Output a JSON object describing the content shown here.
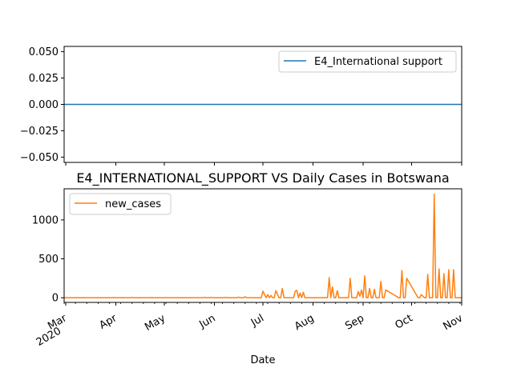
{
  "chart_data": [
    {
      "type": "line",
      "title": "",
      "xlabel": "",
      "ylabel": "",
      "ylim": [
        -0.055,
        0.055
      ],
      "yticks": [
        -0.05,
        -0.025,
        0.0,
        0.025,
        0.05
      ],
      "ytick_labels": [
        "−0.050",
        "−0.025",
        "0.000",
        "0.025",
        "0.050"
      ],
      "legend_position": "top-right",
      "grid": false,
      "series": [
        {
          "name": "E4_International support",
          "color": "#1f77b4",
          "x": [
            "2020-02-29",
            "2020-11-01"
          ],
          "values": [
            0,
            0
          ]
        }
      ]
    },
    {
      "type": "line",
      "title": "E4_INTERNATIONAL_SUPPORT VS Daily Cases in Botswana",
      "xlabel": "Date",
      "ylabel": "",
      "xlim": [
        "2020-02-29",
        "2020-11-01"
      ],
      "ylim": [
        -60,
        1400
      ],
      "yticks": [
        0,
        500,
        1000
      ],
      "ytick_labels": [
        "0",
        "500",
        "1000"
      ],
      "xtick_labels": [
        {
          "date": "2020-03-01",
          "label": "Mar",
          "sublabel": "2020"
        },
        {
          "date": "2020-04-01",
          "label": "Apr"
        },
        {
          "date": "2020-05-01",
          "label": "May"
        },
        {
          "date": "2020-06-01",
          "label": "Jun"
        },
        {
          "date": "2020-07-01",
          "label": "Jul"
        },
        {
          "date": "2020-08-01",
          "label": "Aug"
        },
        {
          "date": "2020-09-01",
          "label": "Sep"
        },
        {
          "date": "2020-10-01",
          "label": "Oct"
        },
        {
          "date": "2020-11-01",
          "label": "Nov"
        }
      ],
      "legend_position": "top-left",
      "grid": false,
      "series": [
        {
          "name": "new_cases",
          "color": "#ff7f0e",
          "x": [
            "2020-02-29",
            "2020-03-30",
            "2020-03-31",
            "2020-04-01",
            "2020-04-04",
            "2020-04-05",
            "2020-04-06",
            "2020-04-10",
            "2020-04-11",
            "2020-04-12",
            "2020-04-22",
            "2020-04-23",
            "2020-04-24",
            "2020-05-25",
            "2020-05-26",
            "2020-05-27",
            "2020-05-29",
            "2020-05-30",
            "2020-05-31",
            "2020-06-07",
            "2020-06-08",
            "2020-06-09",
            "2020-06-15",
            "2020-06-16",
            "2020-06-17",
            "2020-06-19",
            "2020-06-20",
            "2020-06-21",
            "2020-06-30",
            "2020-07-01",
            "2020-07-02",
            "2020-07-03",
            "2020-07-04",
            "2020-07-05",
            "2020-07-06",
            "2020-07-07",
            "2020-07-08",
            "2020-07-09",
            "2020-07-11",
            "2020-07-12",
            "2020-07-13",
            "2020-07-14",
            "2020-07-15",
            "2020-07-16",
            "2020-07-17",
            "2020-07-20",
            "2020-07-21",
            "2020-07-22",
            "2020-07-23",
            "2020-07-24",
            "2020-07-25",
            "2020-07-26",
            "2020-07-27",
            "2020-07-28",
            "2020-08-10",
            "2020-08-11",
            "2020-08-12",
            "2020-08-13",
            "2020-08-14",
            "2020-08-15",
            "2020-08-16",
            "2020-08-17",
            "2020-08-18",
            "2020-08-23",
            "2020-08-24",
            "2020-08-25",
            "2020-08-28",
            "2020-08-29",
            "2020-08-30",
            "2020-08-31",
            "2020-09-01",
            "2020-09-02",
            "2020-09-03",
            "2020-09-04",
            "2020-09-05",
            "2020-09-06",
            "2020-09-07",
            "2020-09-08",
            "2020-09-09",
            "2020-09-10",
            "2020-09-11",
            "2020-09-12",
            "2020-09-13",
            "2020-09-14",
            "2020-09-15",
            "2020-09-23",
            "2020-09-24",
            "2020-09-25",
            "2020-09-26",
            "2020-09-27",
            "2020-09-28",
            "2020-10-05",
            "2020-10-06",
            "2020-10-07",
            "2020-10-09",
            "2020-10-10",
            "2020-10-11",
            "2020-10-12",
            "2020-10-13",
            "2020-10-14",
            "2020-10-15",
            "2020-10-16",
            "2020-10-17",
            "2020-10-18",
            "2020-10-19",
            "2020-10-20",
            "2020-10-21",
            "2020-10-22",
            "2020-10-23",
            "2020-10-24",
            "2020-10-25",
            "2020-10-26",
            "2020-10-27",
            "2020-10-28",
            "2020-10-29",
            "2020-10-30",
            "2020-10-31",
            "2020-11-01"
          ],
          "values": [
            0,
            0,
            3,
            0,
            0,
            2,
            0,
            0,
            3,
            0,
            0,
            2,
            0,
            0,
            5,
            0,
            0,
            3,
            0,
            0,
            5,
            0,
            0,
            8,
            0,
            0,
            12,
            0,
            0,
            85,
            40,
            0,
            40,
            0,
            30,
            0,
            0,
            90,
            0,
            0,
            120,
            0,
            0,
            0,
            0,
            0,
            85,
            95,
            0,
            60,
            0,
            70,
            0,
            0,
            0,
            260,
            0,
            140,
            0,
            0,
            90,
            0,
            0,
            0,
            250,
            0,
            0,
            80,
            20,
            100,
            0,
            280,
            0,
            0,
            120,
            0,
            0,
            110,
            0,
            0,
            0,
            210,
            0,
            0,
            100,
            0,
            0,
            350,
            0,
            0,
            250,
            0,
            0,
            40,
            0,
            0,
            300,
            0,
            0,
            0,
            1330,
            0,
            0,
            370,
            0,
            0,
            310,
            0,
            0,
            360,
            0,
            0,
            360,
            0,
            0,
            0,
            0,
            0
          ]
        }
      ]
    }
  ]
}
